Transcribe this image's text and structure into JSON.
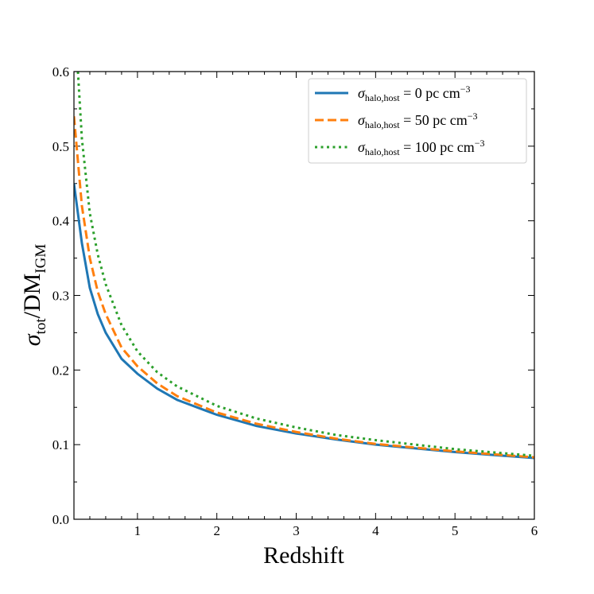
{
  "chart_data": {
    "type": "line",
    "xlabel": "Redshift",
    "ylabel": [
      "σ",
      "tot",
      "/DM",
      "IGM"
    ],
    "x": [
      0.2,
      0.25,
      0.3,
      0.4,
      0.5,
      0.6,
      0.8,
      1,
      1.25,
      1.5,
      2,
      2.5,
      3,
      3.5,
      4,
      5,
      6
    ],
    "series": [
      {
        "name": [
          "σ",
          "halo,host",
          " = 0 pc cm",
          "−3"
        ],
        "color": "#1f77b4",
        "dash": "solid",
        "values": [
          0.45,
          0.41,
          0.37,
          0.31,
          0.275,
          0.25,
          0.215,
          0.195,
          0.175,
          0.16,
          0.14,
          0.125,
          0.115,
          0.107,
          0.1,
          0.09,
          0.082
        ]
      },
      {
        "name": [
          "σ",
          "halo,host",
          " = 50 pc cm",
          "−3"
        ],
        "color": "#ff7f0e",
        "dash": "dashed",
        "values": [
          0.54,
          0.48,
          0.42,
          0.35,
          0.305,
          0.275,
          0.23,
          0.205,
          0.182,
          0.165,
          0.143,
          0.128,
          0.117,
          0.108,
          0.101,
          0.091,
          0.083
        ]
      },
      {
        "name": [
          "σ",
          "halo,host",
          " = 100 pc cm",
          "−3"
        ],
        "color": "#2ca02c",
        "dash": "dotted",
        "values": [
          null,
          0.6,
          0.51,
          0.41,
          0.355,
          0.315,
          0.26,
          0.225,
          0.197,
          0.178,
          0.152,
          0.135,
          0.123,
          0.113,
          0.106,
          0.094,
          0.085
        ]
      }
    ],
    "xlim": [
      0.2,
      6
    ],
    "ylim": [
      0,
      0.6
    ],
    "xticks": [
      1,
      2,
      3,
      4,
      5,
      6
    ],
    "yticks": [
      {
        "value": 0,
        "label": "0.0"
      },
      0.1,
      0.2,
      0.3,
      0.4,
      0.5,
      0.6
    ],
    "grid": false,
    "legend": "upper right"
  }
}
